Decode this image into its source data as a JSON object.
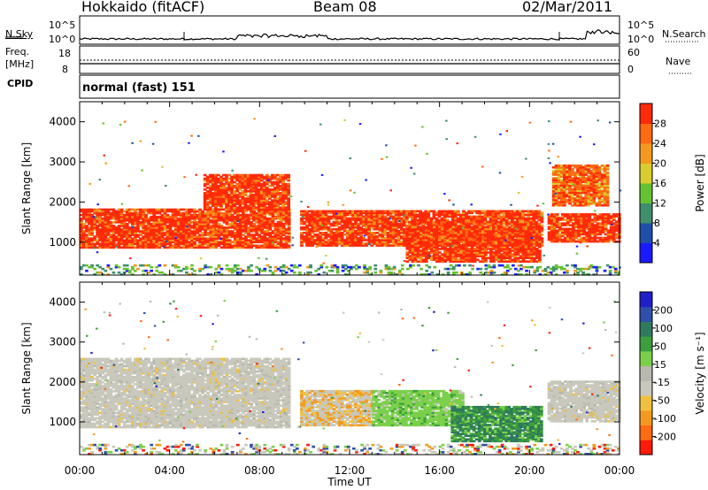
{
  "header": {
    "radar": "Hokkaido (fitACF)",
    "beam": "Beam 08",
    "date": "02/Mar/2011"
  },
  "strip": {
    "nsky_label": "N.Sky",
    "nsearch_label": "N.Search",
    "freq_label": "Freq.",
    "freq_unit": "[MHz]",
    "nave_label": "Nave",
    "cpid_label": "CPID",
    "mode_text": "normal (fast) 151",
    "noise_ticks_left": [
      "10^5",
      "10^0"
    ],
    "noise_ticks_right": [
      "10^5",
      "10^0"
    ],
    "freq_ticks": [
      "18",
      "8"
    ],
    "nave_ticks": [
      "60",
      "0"
    ]
  },
  "colors": {
    "power_scale": [
      "#1a1aff",
      "#1f4fa8",
      "#3f8f6e",
      "#66c232",
      "#d9cc2e",
      "#f39a1e",
      "#ff6a12",
      "#ff2a0a"
    ],
    "velocity_scale": [
      "#ff1a0a",
      "#ff6a12",
      "#f39a1e",
      "#f0c040",
      "#c8c8bc",
      "#b8b8b0",
      "#7ad04a",
      "#3c9e3c",
      "#2f7a5c",
      "#2f4fa8",
      "#2020c8"
    ]
  },
  "chart_data": [
    {
      "type": "heatmap",
      "panel": "power",
      "xlabel": "",
      "ylabel": "Slant Range [km]",
      "xlim": [
        0,
        24
      ],
      "ylim": [
        180,
        4500
      ],
      "yticks": [
        "1000",
        "2000",
        "3000",
        "4000"
      ],
      "colorbar_label": "Power [dB]",
      "colorbar_ticks": [
        "4",
        "8",
        "12",
        "16",
        "20",
        "24",
        "28"
      ],
      "colorbar_range": [
        0,
        32
      ],
      "bands": [
        {
          "t0": 0.0,
          "t1": 9.3,
          "r0": 850,
          "r1": 1800,
          "level": "high"
        },
        {
          "t0": 5.5,
          "t1": 9.3,
          "r0": 1800,
          "r1": 2700,
          "level": "high"
        },
        {
          "t0": 9.8,
          "t1": 20.5,
          "r0": 900,
          "r1": 1800,
          "level": "high"
        },
        {
          "t0": 14.5,
          "t1": 20.5,
          "r0": 500,
          "r1": 1400,
          "level": "high"
        },
        {
          "t0": 20.8,
          "t1": 24.0,
          "r0": 1000,
          "r1": 1700,
          "level": "high"
        },
        {
          "t0": 21.0,
          "t1": 23.5,
          "r0": 1900,
          "r1": 2900,
          "level": "mid"
        },
        {
          "t0": 0.0,
          "t1": 24.0,
          "r0": 180,
          "r1": 450,
          "level": "low"
        }
      ]
    },
    {
      "type": "heatmap",
      "panel": "velocity",
      "xlabel": "Time UT",
      "ylabel": "Slant Range [km]",
      "xlim": [
        0,
        24
      ],
      "ylim": [
        180,
        4500
      ],
      "xticks": [
        "00:00",
        "04:00",
        "08:00",
        "12:00",
        "16:00",
        "20:00",
        "00:00"
      ],
      "yticks": [
        "1000",
        "2000",
        "3000",
        "4000"
      ],
      "colorbar_label": "Velocity [m s⁻¹]",
      "colorbar_ticks": [
        "-200",
        "-100",
        "-50",
        "-15",
        "15",
        "50",
        "100",
        "200"
      ],
      "colorbar_range": [
        -250,
        250
      ],
      "bands": [
        {
          "t0": 0.0,
          "t1": 9.3,
          "r0": 850,
          "r1": 2600,
          "level": "gray"
        },
        {
          "t0": 9.8,
          "t1": 13.0,
          "r0": 900,
          "r1": 1800,
          "level": "gray-orange"
        },
        {
          "t0": 13.0,
          "t1": 17.0,
          "r0": 900,
          "r1": 1800,
          "level": "green"
        },
        {
          "t0": 16.5,
          "t1": 20.5,
          "r0": 500,
          "r1": 1400,
          "level": "dark-green"
        },
        {
          "t0": 20.8,
          "t1": 24.0,
          "r0": 1000,
          "r1": 2000,
          "level": "gray"
        },
        {
          "t0": 0.0,
          "t1": 24.0,
          "r0": 180,
          "r1": 450,
          "level": "low"
        }
      ]
    }
  ]
}
